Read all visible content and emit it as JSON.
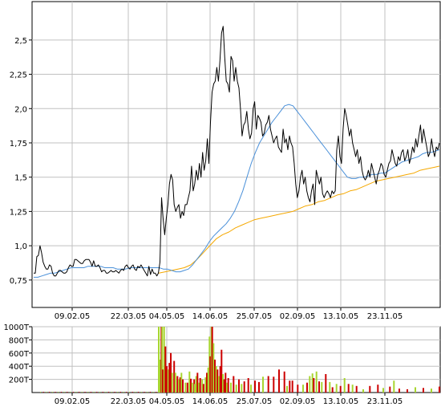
{
  "colors": {
    "price": "#000000",
    "ma_blue": "#4a90d9",
    "ma_orange": "#f5a800",
    "grid": "#c0c0c0",
    "vol_up": "#a8d530",
    "vol_down": "#cc0000"
  },
  "chart_data": [
    {
      "type": "line",
      "x_tick_labels": [
        "09.02.05",
        "22.03.05",
        "04.05.05",
        "14.06.05",
        "25.07.05",
        "02.09.05",
        "13.10.05",
        "23.11.05"
      ],
      "y_tick_labels": [
        "0,75",
        "1,0",
        "1,25",
        "1,5",
        "1,75",
        "2,0",
        "2,25",
        "2,5"
      ],
      "y_tick_values": [
        0.75,
        1.0,
        1.25,
        1.5,
        1.75,
        2.0,
        2.25,
        2.5
      ],
      "ylim": [
        0.55,
        2.78
      ],
      "grid": true,
      "legend": "none",
      "series": [
        {
          "values": [
            0.8,
            0.8,
            0.92,
            0.93,
            1.0,
            0.95,
            0.88,
            0.85,
            0.83,
            0.83,
            0.86,
            0.85,
            0.8,
            0.78,
            0.78,
            0.8,
            0.82,
            0.82,
            0.81,
            0.8,
            0.8,
            0.81,
            0.84,
            0.86,
            0.85,
            0.85,
            0.9,
            0.9,
            0.89,
            0.88,
            0.87,
            0.87,
            0.89,
            0.9,
            0.9,
            0.9,
            0.88,
            0.85,
            0.89,
            0.85,
            0.85,
            0.86,
            0.84,
            0.81,
            0.82,
            0.82,
            0.8,
            0.8,
            0.81,
            0.82,
            0.81,
            0.81,
            0.82,
            0.81,
            0.8,
            0.82,
            0.83,
            0.82,
            0.85,
            0.86,
            0.84,
            0.83,
            0.85,
            0.86,
            0.83,
            0.82,
            0.85,
            0.84,
            0.86,
            0.84,
            0.82,
            0.8,
            0.78,
            0.85,
            0.79,
            0.83,
            0.8,
            0.8,
            0.78,
            0.8,
            0.88,
            1.35,
            1.2,
            1.08,
            1.2,
            1.3,
            1.45,
            1.52,
            1.48,
            1.3,
            1.25,
            1.28,
            1.3,
            1.2,
            1.25,
            1.22,
            1.3,
            1.3,
            1.35,
            1.4,
            1.58,
            1.4,
            1.45,
            1.55,
            1.48,
            1.6,
            1.5,
            1.68,
            1.55,
            1.62,
            1.78,
            1.6,
            1.9,
            2.12,
            2.18,
            2.2,
            2.3,
            2.2,
            2.35,
            2.55,
            2.6,
            2.38,
            2.2,
            2.18,
            2.12,
            2.38,
            2.35,
            2.2,
            2.3,
            2.2,
            2.15,
            2.0,
            1.8,
            1.88,
            1.9,
            1.98,
            1.85,
            1.78,
            1.82,
            2.0,
            2.05,
            1.85,
            1.95,
            1.93,
            1.9,
            1.8,
            1.82,
            1.88,
            1.9,
            1.95,
            1.85,
            1.8,
            1.75,
            1.78,
            1.8,
            1.72,
            1.7,
            1.68,
            1.85,
            1.75,
            1.78,
            1.7,
            1.8,
            1.75,
            1.72,
            1.6,
            1.45,
            1.35,
            1.4,
            1.5,
            1.55,
            1.45,
            1.5,
            1.4,
            1.35,
            1.32,
            1.4,
            1.45,
            1.3,
            1.55,
            1.5,
            1.45,
            1.5,
            1.38,
            1.35,
            1.38,
            1.4,
            1.38,
            1.35,
            1.4,
            1.38,
            1.4,
            1.7,
            1.8,
            1.65,
            1.6,
            1.85,
            2.0,
            1.95,
            1.88,
            1.8,
            1.85,
            1.75,
            1.7,
            1.65,
            1.7,
            1.6,
            1.65,
            1.55,
            1.5,
            1.48,
            1.5,
            1.55,
            1.5,
            1.6,
            1.55,
            1.5,
            1.45,
            1.52,
            1.55,
            1.6,
            1.58,
            1.52,
            1.5,
            1.55,
            1.6,
            1.62,
            1.7,
            1.65,
            1.6,
            1.58,
            1.65,
            1.62,
            1.68,
            1.7,
            1.62,
            1.65,
            1.7,
            1.6,
            1.65,
            1.72,
            1.68,
            1.78,
            1.72,
            1.8,
            1.88,
            1.75,
            1.85,
            1.78,
            1.72,
            1.65,
            1.68,
            1.78,
            1.7,
            1.65,
            1.72,
            1.7,
            1.75
          ]
        },
        {
          "values": [
            0.77,
            0.77,
            0.78,
            0.79,
            0.8,
            0.8,
            0.81,
            0.82,
            0.83,
            0.84,
            0.84,
            0.84,
            0.84,
            0.85,
            0.85,
            0.85,
            0.85,
            0.84,
            0.84,
            0.84,
            0.83,
            0.83,
            0.83,
            0.84,
            0.84,
            0.84,
            0.84,
            0.84,
            0.84,
            0.84,
            0.84,
            0.83,
            0.83,
            0.82,
            0.81,
            0.81,
            0.82,
            0.83,
            0.86,
            0.9,
            0.94,
            0.98,
            1.03,
            1.07,
            1.1,
            1.13,
            1.16,
            1.2,
            1.25,
            1.32,
            1.4,
            1.5,
            1.6,
            1.68,
            1.75,
            1.8,
            1.85,
            1.9,
            1.94,
            1.98,
            2.02,
            2.03,
            2.02,
            1.98,
            1.94,
            1.9,
            1.86,
            1.82,
            1.78,
            1.74,
            1.7,
            1.66,
            1.62,
            1.58,
            1.54,
            1.5,
            1.49,
            1.49,
            1.5,
            1.5,
            1.51,
            1.52,
            1.52,
            1.53,
            1.53,
            1.55,
            1.57,
            1.59,
            1.61,
            1.62,
            1.63,
            1.64,
            1.65,
            1.67,
            1.68,
            1.68,
            1.69,
            1.7
          ]
        },
        {
          "values": [
            0.8,
            0.81,
            0.82,
            0.83,
            0.84,
            0.86,
            0.9,
            0.95,
            1.0,
            1.05,
            1.08,
            1.1,
            1.13,
            1.15,
            1.17,
            1.19,
            1.2,
            1.21,
            1.22,
            1.23,
            1.24,
            1.25,
            1.27,
            1.29,
            1.3,
            1.32,
            1.33,
            1.35,
            1.37,
            1.38,
            1.4,
            1.41,
            1.43,
            1.45,
            1.47,
            1.48,
            1.49,
            1.5,
            1.51,
            1.52,
            1.53,
            1.55,
            1.56,
            1.57,
            1.58
          ]
        }
      ]
    },
    {
      "type": "bar",
      "x_tick_labels": [
        "09.02.05",
        "22.03.05",
        "04.05.05",
        "14.06.05",
        "25.07.05",
        "02.09.05",
        "13.10.05",
        "23.11.05"
      ],
      "y_tick_labels": [
        "200T",
        "400T",
        "600T",
        "800T",
        "1000T"
      ],
      "y_tick_values": [
        200000,
        400000,
        600000,
        800000,
        1000000
      ],
      "ylim": [
        0,
        1000000
      ],
      "grid": true,
      "legend": "none",
      "bars": [
        {
          "x": 0.72,
          "v": 1000000,
          "c": "up"
        },
        {
          "x": 0.73,
          "v": 500000,
          "c": "up"
        },
        {
          "x": 0.74,
          "v": 1000000,
          "c": "down"
        },
        {
          "x": 0.745,
          "v": 1000000,
          "c": "up"
        },
        {
          "x": 0.75,
          "v": 350000,
          "c": "down"
        },
        {
          "x": 0.76,
          "v": 1000000,
          "c": "up"
        },
        {
          "x": 0.77,
          "v": 700000,
          "c": "down"
        },
        {
          "x": 0.78,
          "v": 400000,
          "c": "down"
        },
        {
          "x": 0.79,
          "v": 350000,
          "c": "up"
        },
        {
          "x": 0.8,
          "v": 450000,
          "c": "down"
        },
        {
          "x": 0.81,
          "v": 600000,
          "c": "down"
        },
        {
          "x": 0.82,
          "v": 300000,
          "c": "up"
        },
        {
          "x": 0.835,
          "v": 480000,
          "c": "down"
        },
        {
          "x": 0.845,
          "v": 300000,
          "c": "up"
        },
        {
          "x": 0.86,
          "v": 250000,
          "c": "down"
        },
        {
          "x": 0.87,
          "v": 200000,
          "c": "up"
        },
        {
          "x": 0.88,
          "v": 230000,
          "c": "down"
        },
        {
          "x": 0.89,
          "v": 300000,
          "c": "up"
        },
        {
          "x": 0.9,
          "v": 200000,
          "c": "down"
        },
        {
          "x": 0.92,
          "v": 150000,
          "c": "up"
        },
        {
          "x": 0.935,
          "v": 150000,
          "c": "down"
        },
        {
          "x": 0.95,
          "v": 320000,
          "c": "up"
        },
        {
          "x": 0.96,
          "v": 210000,
          "c": "down"
        },
        {
          "x": 0.97,
          "v": 150000,
          "c": "up"
        },
        {
          "x": 0.985,
          "v": 200000,
          "c": "down"
        },
        {
          "x": 0.99,
          "v": 130000,
          "c": "up"
        },
        {
          "x": 1.0,
          "v": 250000,
          "c": "up"
        },
        {
          "x": 1.01,
          "v": 300000,
          "c": "down"
        },
        {
          "x": 1.02,
          "v": 150000,
          "c": "up"
        },
        {
          "x": 1.03,
          "v": 220000,
          "c": "down"
        },
        {
          "x": 1.045,
          "v": 200000,
          "c": "up"
        },
        {
          "x": 1.055,
          "v": 130000,
          "c": "down"
        },
        {
          "x": 1.07,
          "v": 230000,
          "c": "up"
        },
        {
          "x": 1.08,
          "v": 300000,
          "c": "down"
        },
        {
          "x": 1.09,
          "v": 380000,
          "c": "up"
        },
        {
          "x": 1.1,
          "v": 850000,
          "c": "up"
        },
        {
          "x": 1.105,
          "v": 550000,
          "c": "down"
        },
        {
          "x": 1.115,
          "v": 1000000,
          "c": "up"
        },
        {
          "x": 1.12,
          "v": 1000000,
          "c": "down"
        },
        {
          "x": 1.13,
          "v": 750000,
          "c": "up"
        },
        {
          "x": 1.14,
          "v": 500000,
          "c": "down"
        },
        {
          "x": 1.15,
          "v": 400000,
          "c": "up"
        },
        {
          "x": 1.16,
          "v": 350000,
          "c": "down"
        },
        {
          "x": 1.17,
          "v": 250000,
          "c": "up"
        },
        {
          "x": 1.18,
          "v": 400000,
          "c": "down"
        },
        {
          "x": 1.19,
          "v": 650000,
          "c": "down"
        },
        {
          "x": 1.2,
          "v": 280000,
          "c": "up"
        },
        {
          "x": 1.21,
          "v": 200000,
          "c": "down"
        },
        {
          "x": 1.22,
          "v": 300000,
          "c": "down"
        },
        {
          "x": 1.23,
          "v": 150000,
          "c": "up"
        },
        {
          "x": 1.24,
          "v": 220000,
          "c": "down"
        },
        {
          "x": 1.26,
          "v": 150000,
          "c": "up"
        },
        {
          "x": 1.28,
          "v": 250000,
          "c": "down"
        },
        {
          "x": 1.3,
          "v": 120000,
          "c": "up"
        },
        {
          "x": 1.32,
          "v": 200000,
          "c": "down"
        },
        {
          "x": 1.34,
          "v": 130000,
          "c": "up"
        },
        {
          "x": 1.36,
          "v": 170000,
          "c": "down"
        },
        {
          "x": 1.39,
          "v": 220000,
          "c": "down"
        },
        {
          "x": 1.41,
          "v": 120000,
          "c": "up"
        },
        {
          "x": 1.44,
          "v": 180000,
          "c": "down"
        },
        {
          "x": 1.47,
          "v": 160000,
          "c": "down"
        },
        {
          "x": 1.5,
          "v": 240000,
          "c": "up"
        },
        {
          "x": 1.54,
          "v": 250000,
          "c": "down"
        },
        {
          "x": 1.58,
          "v": 240000,
          "c": "down"
        },
        {
          "x": 1.62,
          "v": 350000,
          "c": "down"
        },
        {
          "x": 1.66,
          "v": 320000,
          "c": "down"
        },
        {
          "x": 1.68,
          "v": 100000,
          "c": "up"
        },
        {
          "x": 1.7,
          "v": 180000,
          "c": "down"
        },
        {
          "x": 1.72,
          "v": 180000,
          "c": "down"
        },
        {
          "x": 1.76,
          "v": 120000,
          "c": "down"
        },
        {
          "x": 1.8,
          "v": 120000,
          "c": "up"
        },
        {
          "x": 1.83,
          "v": 150000,
          "c": "down"
        },
        {
          "x": 1.85,
          "v": 250000,
          "c": "up"
        },
        {
          "x": 1.87,
          "v": 290000,
          "c": "up"
        },
        {
          "x": 1.88,
          "v": 220000,
          "c": "down"
        },
        {
          "x": 1.9,
          "v": 320000,
          "c": "up"
        },
        {
          "x": 1.92,
          "v": 170000,
          "c": "down"
        },
        {
          "x": 1.94,
          "v": 160000,
          "c": "up"
        },
        {
          "x": 1.97,
          "v": 280000,
          "c": "down"
        },
        {
          "x": 2.0,
          "v": 160000,
          "c": "up"
        },
        {
          "x": 2.02,
          "v": 80000,
          "c": "down"
        },
        {
          "x": 2.05,
          "v": 130000,
          "c": "up"
        },
        {
          "x": 2.08,
          "v": 100000,
          "c": "down"
        },
        {
          "x": 2.11,
          "v": 220000,
          "c": "up"
        },
        {
          "x": 2.14,
          "v": 130000,
          "c": "down"
        },
        {
          "x": 2.17,
          "v": 120000,
          "c": "up"
        },
        {
          "x": 2.2,
          "v": 100000,
          "c": "down"
        },
        {
          "x": 2.25,
          "v": 50000,
          "c": "up"
        },
        {
          "x": 2.3,
          "v": 100000,
          "c": "down"
        },
        {
          "x": 2.36,
          "v": 120000,
          "c": "down"
        },
        {
          "x": 2.4,
          "v": 70000,
          "c": "up"
        },
        {
          "x": 2.45,
          "v": 90000,
          "c": "down"
        },
        {
          "x": 2.48,
          "v": 180000,
          "c": "up"
        },
        {
          "x": 2.52,
          "v": 60000,
          "c": "down"
        },
        {
          "x": 2.58,
          "v": 50000,
          "c": "down"
        },
        {
          "x": 2.64,
          "v": 80000,
          "c": "up"
        },
        {
          "x": 2.7,
          "v": 70000,
          "c": "down"
        },
        {
          "x": 2.76,
          "v": 60000,
          "c": "up"
        },
        {
          "x": 2.82,
          "v": 90000,
          "c": "down"
        }
      ]
    }
  ]
}
